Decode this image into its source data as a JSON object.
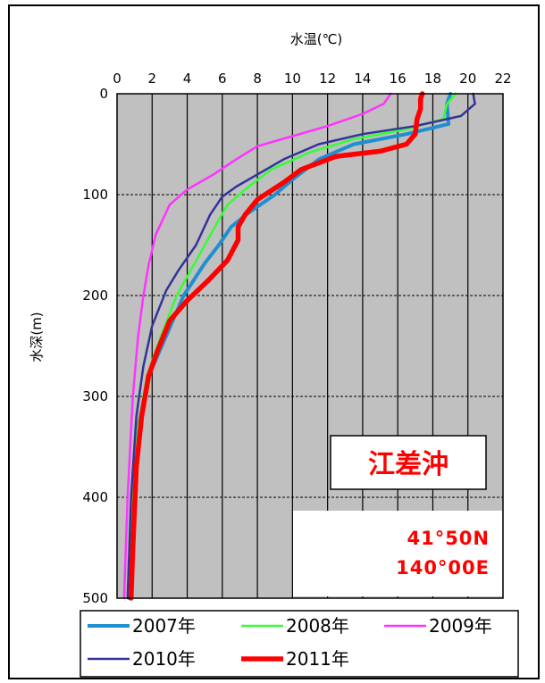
{
  "chart_data": {
    "type": "line",
    "title": "",
    "xlabel": "水温(℃)",
    "ylabel": "水深(m)",
    "xlim": [
      0,
      22
    ],
    "ylim": [
      0,
      500
    ],
    "y_inverted": true,
    "x_axis_position": "top",
    "x_ticks": [
      0,
      2,
      4,
      6,
      8,
      10,
      12,
      14,
      16,
      18,
      20,
      22
    ],
    "y_ticks": [
      0,
      100,
      200,
      300,
      400,
      500
    ],
    "grid": {
      "vertical": "solid",
      "horizontal": "dashed"
    },
    "plot_background": "#c0c0c0",
    "legend_position": "bottom",
    "series": [
      {
        "name": "2007年",
        "color": "#1e8fd0",
        "points": [
          [
            19.0,
            0
          ],
          [
            18.8,
            10
          ],
          [
            18.9,
            30
          ],
          [
            16.5,
            40
          ],
          [
            13.5,
            50
          ],
          [
            11.5,
            65
          ],
          [
            10.0,
            85
          ],
          [
            9.0,
            100
          ],
          [
            7.5,
            118
          ],
          [
            6.5,
            132
          ],
          [
            5.8,
            150
          ],
          [
            5.0,
            168
          ],
          [
            3.8,
            200
          ],
          [
            2.8,
            240
          ],
          [
            1.8,
            280
          ],
          [
            1.2,
            330
          ],
          [
            0.9,
            400
          ],
          [
            0.7,
            500
          ]
        ]
      },
      {
        "name": "2008年",
        "color": "#33ff33",
        "points": [
          [
            19.3,
            0
          ],
          [
            18.8,
            10
          ],
          [
            18.6,
            25
          ],
          [
            16.5,
            35
          ],
          [
            13.5,
            45
          ],
          [
            11.0,
            58
          ],
          [
            8.8,
            75
          ],
          [
            7.5,
            92
          ],
          [
            6.3,
            110
          ],
          [
            5.8,
            125
          ],
          [
            5.0,
            150
          ],
          [
            4.2,
            175
          ],
          [
            3.4,
            200
          ],
          [
            2.5,
            240
          ],
          [
            1.7,
            280
          ],
          [
            1.2,
            330
          ],
          [
            0.9,
            400
          ],
          [
            0.7,
            500
          ]
        ]
      },
      {
        "name": "2009年",
        "color": "#ff33ff",
        "points": [
          [
            15.6,
            0
          ],
          [
            15.2,
            10
          ],
          [
            14.0,
            20
          ],
          [
            12.0,
            32
          ],
          [
            10.0,
            42
          ],
          [
            8.0,
            52
          ],
          [
            6.8,
            65
          ],
          [
            5.5,
            80
          ],
          [
            4.0,
            95
          ],
          [
            3.0,
            110
          ],
          [
            2.2,
            140
          ],
          [
            1.8,
            170
          ],
          [
            1.5,
            200
          ],
          [
            1.2,
            240
          ],
          [
            0.9,
            300
          ],
          [
            0.6,
            400
          ],
          [
            0.4,
            500
          ]
        ]
      },
      {
        "name": "2010年",
        "color": "#333399",
        "points": [
          [
            20.3,
            0
          ],
          [
            20.4,
            10
          ],
          [
            19.6,
            22
          ],
          [
            17.0,
            32
          ],
          [
            14.0,
            40
          ],
          [
            11.5,
            50
          ],
          [
            9.5,
            65
          ],
          [
            8.0,
            80
          ],
          [
            6.8,
            92
          ],
          [
            6.0,
            102
          ],
          [
            5.3,
            120
          ],
          [
            4.5,
            150
          ],
          [
            3.5,
            175
          ],
          [
            2.8,
            195
          ],
          [
            2.0,
            230
          ],
          [
            1.5,
            270
          ],
          [
            1.1,
            320
          ],
          [
            0.8,
            400
          ],
          [
            0.6,
            500
          ]
        ]
      },
      {
        "name": "2011年",
        "color": "#ff0000",
        "points": [
          [
            17.4,
            0
          ],
          [
            17.3,
            5
          ],
          [
            17.3,
            15
          ],
          [
            17.1,
            25
          ],
          [
            17.0,
            40
          ],
          [
            16.5,
            50
          ],
          [
            15.0,
            57
          ],
          [
            12.5,
            62
          ],
          [
            10.5,
            75
          ],
          [
            9.5,
            88
          ],
          [
            8.0,
            105
          ],
          [
            7.3,
            120
          ],
          [
            6.9,
            132
          ],
          [
            6.9,
            145
          ],
          [
            6.3,
            165
          ],
          [
            5.2,
            185
          ],
          [
            4.0,
            205
          ],
          [
            3.0,
            225
          ],
          [
            2.3,
            255
          ],
          [
            1.8,
            280
          ],
          [
            1.4,
            320
          ],
          [
            1.1,
            370
          ],
          [
            0.9,
            450
          ],
          [
            0.8,
            500
          ]
        ]
      }
    ],
    "annotations": {
      "location": "江差沖",
      "coords": [
        "41°50N",
        "140°00E"
      ]
    }
  }
}
